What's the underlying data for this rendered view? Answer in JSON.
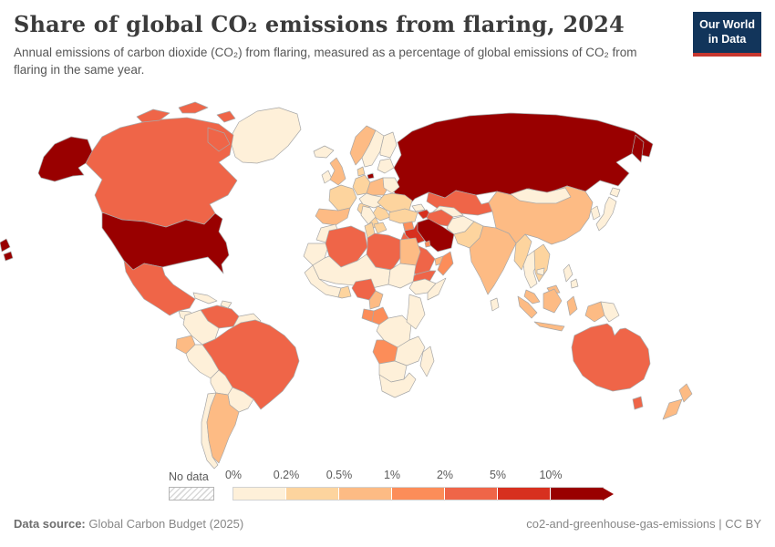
{
  "header": {
    "title": "Share of global CO₂ emissions from flaring, 2024",
    "subtitle": "Annual emissions of carbon dioxide (CO₂) from flaring, measured as a percentage of global emissions of CO₂ from flaring in the same year.",
    "logo": {
      "line1": "Our World",
      "line2": "in Data",
      "bg_color": "#12355b",
      "accent_color": "#c7372f"
    }
  },
  "legend": {
    "no_data_label": "No data",
    "tick_labels": [
      "0%",
      "0.2%",
      "0.5%",
      "1%",
      "2%",
      "5%",
      "10%"
    ],
    "colors": [
      "#fef0d9",
      "#fdd49e",
      "#fdbb84",
      "#fc8d59",
      "#ef6548",
      "#d7301f",
      "#990000"
    ]
  },
  "footer": {
    "source_label": "Data source:",
    "source_value": "Global Carbon Budget (2025)",
    "attribution": "co2-and-greenhouse-gas-emissions | CC BY"
  },
  "chart_data": {
    "type": "choropleth-map",
    "title": "Share of global CO₂ emissions from flaring, 2024",
    "unit": "share of global flaring CO₂ emissions",
    "year": 2024,
    "bin_labels": [
      "0–0.2%",
      "0.2–0.5%",
      "0.5–1%",
      "1–2%",
      "2–5%",
      "5–10%",
      "10%+"
    ],
    "legend_no_data": "No data",
    "countries": {
      "united-states": {
        "name": "United States",
        "bin": 6
      },
      "russia": {
        "name": "Russia",
        "bin": 6
      },
      "iran": {
        "name": "Iran",
        "bin": 6
      },
      "iraq": {
        "name": "Iraq",
        "bin": 5
      },
      "azerbaijan": {
        "name": "Azerbaijan",
        "bin": 5
      },
      "canada": {
        "name": "Canada",
        "bin": 4
      },
      "mexico": {
        "name": "Mexico",
        "bin": 4
      },
      "venezuela": {
        "name": "Venezuela",
        "bin": 4
      },
      "brazil": {
        "name": "Brazil",
        "bin": 4
      },
      "algeria": {
        "name": "Algeria",
        "bin": 4
      },
      "libya": {
        "name": "Libya",
        "bin": 4
      },
      "nigeria": {
        "name": "Nigeria",
        "bin": 4
      },
      "saudi-arabia": {
        "name": "Saudi Arabia",
        "bin": 4
      },
      "kazakhstan": {
        "name": "Kazakhstan",
        "bin": 4
      },
      "turkmenistan": {
        "name": "Turkmenistan",
        "bin": 4
      },
      "australia": {
        "name": "Australia",
        "bin": 4
      },
      "yemen": {
        "name": "Yemen",
        "bin": 4
      },
      "gabon": {
        "name": "Gabon",
        "bin": 3
      },
      "congo": {
        "name": "Congo",
        "bin": 3
      },
      "angola": {
        "name": "Angola",
        "bin": 3
      },
      "oman": {
        "name": "Oman",
        "bin": 3
      },
      "syria": {
        "name": "Syria",
        "bin": 3
      },
      "kuwait": {
        "name": "Kuwait",
        "bin": 3
      },
      "china": {
        "name": "China",
        "bin": 2
      },
      "india": {
        "name": "India",
        "bin": 2
      },
      "indonesia": {
        "name": "Indonesia",
        "bin": 2
      },
      "malaysia": {
        "name": "Malaysia",
        "bin": 2
      },
      "egypt": {
        "name": "Egypt",
        "bin": 2
      },
      "united-kingdom": {
        "name": "United Kingdom",
        "bin": 2
      },
      "poland": {
        "name": "Poland",
        "bin": 2
      },
      "spain": {
        "name": "Spain",
        "bin": 2
      },
      "argentina": {
        "name": "Argentina",
        "bin": 2
      },
      "ecuador": {
        "name": "Ecuador",
        "bin": 2
      },
      "cameroon": {
        "name": "Cameroon",
        "bin": 2
      },
      "new-zealand": {
        "name": "New Zealand",
        "bin": 2
      },
      "norway": {
        "name": "Norway",
        "bin": 2
      },
      "uae-qatar": {
        "name": "United Arab Emirates / Qatar",
        "bin": 2
      },
      "france": {
        "name": "France",
        "bin": 1
      },
      "germany": {
        "name": "Germany",
        "bin": 1
      },
      "italy": {
        "name": "Italy",
        "bin": 1
      },
      "ukraine": {
        "name": "Ukraine",
        "bin": 1
      },
      "romania": {
        "name": "Romania",
        "bin": 1
      },
      "turkey": {
        "name": "Turkey",
        "bin": 1
      },
      "tunisia": {
        "name": "Tunisia",
        "bin": 1
      },
      "ghana": {
        "name": "Ghana",
        "bin": 1
      },
      "pakistan": {
        "name": "Pakistan",
        "bin": 1
      },
      "myanmar": {
        "name": "Myanmar",
        "bin": 1
      },
      "vietnam": {
        "name": "Vietnam",
        "bin": 1
      },
      "denmark": {
        "name": "Denmark",
        "bin": 1
      },
      "greece": {
        "name": "Greece",
        "bin": 1
      },
      "greenland": {
        "name": "Greenland",
        "bin": 0
      },
      "central-america": {
        "name": "Central America",
        "bin": 0
      },
      "cuba": {
        "name": "Cuba",
        "bin": 0
      },
      "hispaniola": {
        "name": "Hispaniola",
        "bin": 0
      },
      "colombia": {
        "name": "Colombia",
        "bin": 0
      },
      "guyanas": {
        "name": "Guyanas",
        "bin": 0
      },
      "peru": {
        "name": "Peru",
        "bin": 0
      },
      "bolivia": {
        "name": "Bolivia",
        "bin": 0
      },
      "paraguay-uruguay": {
        "name": "Paraguay / Uruguay",
        "bin": 0
      },
      "chile": {
        "name": "Chile",
        "bin": 0
      },
      "iceland": {
        "name": "Iceland",
        "bin": 0
      },
      "ireland": {
        "name": "Ireland",
        "bin": 0
      },
      "sweden": {
        "name": "Sweden",
        "bin": 0
      },
      "finland": {
        "name": "Finland",
        "bin": 0
      },
      "baltics": {
        "name": "Baltic states",
        "bin": 0
      },
      "belarus": {
        "name": "Belarus",
        "bin": 0
      },
      "central-europe": {
        "name": "Central Europe",
        "bin": 0
      },
      "balkans": {
        "name": "Balkans",
        "bin": 0
      },
      "georgia": {
        "name": "Georgia",
        "bin": 0
      },
      "uzbekistan": {
        "name": "Uzbekistan",
        "bin": 0
      },
      "afghanistan": {
        "name": "Afghanistan",
        "bin": 0
      },
      "sri-lanka": {
        "name": "Sri Lanka",
        "bin": 0
      },
      "mongolia": {
        "name": "Mongolia",
        "bin": 0
      },
      "south-korea": {
        "name": "South Korea",
        "bin": 0
      },
      "japan": {
        "name": "Japan",
        "bin": 0
      },
      "thailand": {
        "name": "Thailand",
        "bin": 0
      },
      "cambodia": {
        "name": "Cambodia",
        "bin": 0
      },
      "philippines": {
        "name": "Philippines",
        "bin": 0
      },
      "papua-new-guinea": {
        "name": "Papua New Guinea",
        "bin": 0
      },
      "morocco": {
        "name": "Morocco",
        "bin": 0
      },
      "western-sahara": {
        "name": "Western Sahara",
        "bin": 0
      },
      "sahel": {
        "name": "Mali / Niger / Chad",
        "bin": 0
      },
      "sudan": {
        "name": "Sudan",
        "bin": 0
      },
      "ethiopia": {
        "name": "Ethiopia",
        "bin": 0
      },
      "somalia": {
        "name": "Somalia",
        "bin": 0
      },
      "west-africa": {
        "name": "West Africa",
        "bin": 0
      },
      "drc": {
        "name": "Democratic Republic of Congo",
        "bin": 0
      },
      "east-africa": {
        "name": "Kenya / Tanzania",
        "bin": 0
      },
      "zambia-mozambique": {
        "name": "Zambia / Mozambique",
        "bin": 0
      },
      "namibia-botswana": {
        "name": "Namibia / Botswana",
        "bin": 0
      },
      "south-africa": {
        "name": "South Africa",
        "bin": 0
      },
      "madagascar": {
        "name": "Madagascar",
        "bin": 0
      }
    }
  }
}
